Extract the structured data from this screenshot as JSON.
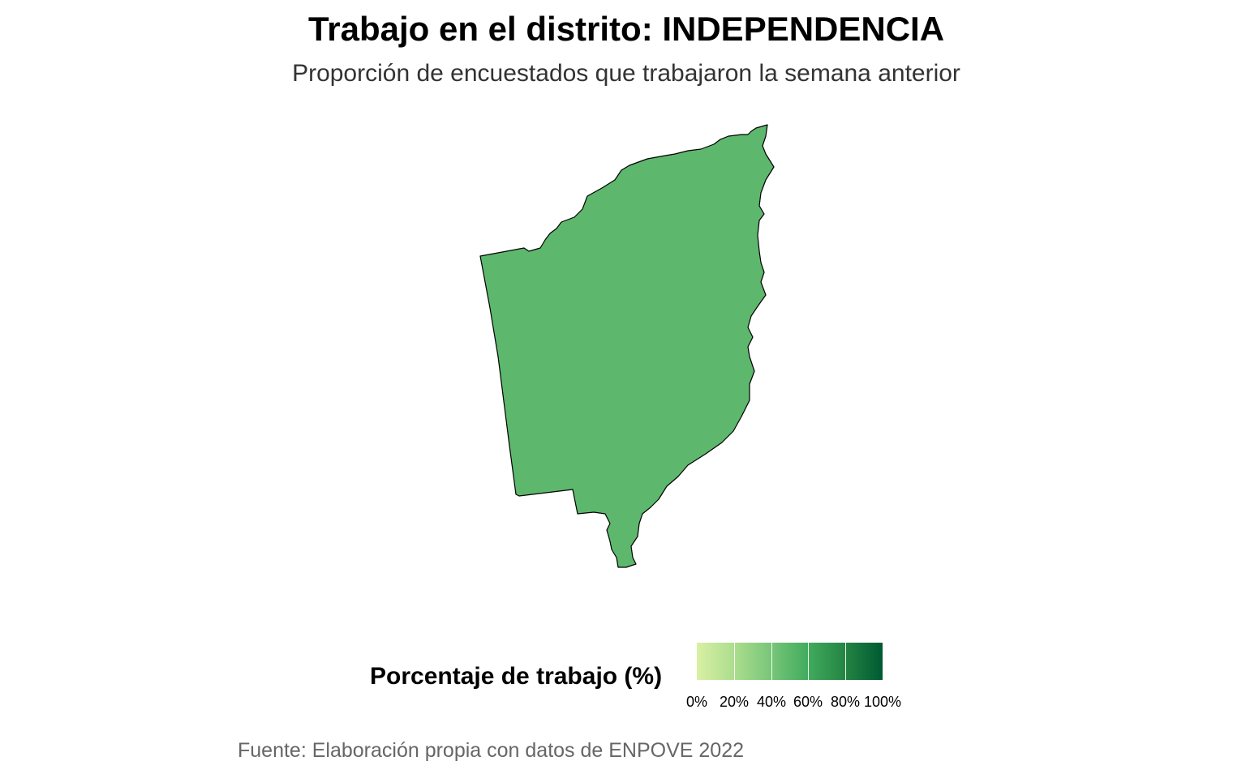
{
  "title": "Trabajo en el distrito: INDEPENDENCIA",
  "subtitle": "Proporción de encuestados que trabajaron la semana anterior",
  "region": {
    "name": "INDEPENDENCIA",
    "fill_color": "#5db76d",
    "stroke_color": "#000000"
  },
  "legend": {
    "title": "Porcentaje de trabajo (%)",
    "ticks": [
      "0%",
      "20%",
      "40%",
      "60%",
      "80%",
      "100%"
    ],
    "gradient_colors": [
      "#d9f0a3",
      "#addd8e",
      "#78c679",
      "#41ab5d",
      "#238443",
      "#005a32"
    ]
  },
  "caption": "Fuente: Elaboración propia con datos de ENPOVE 2022"
}
